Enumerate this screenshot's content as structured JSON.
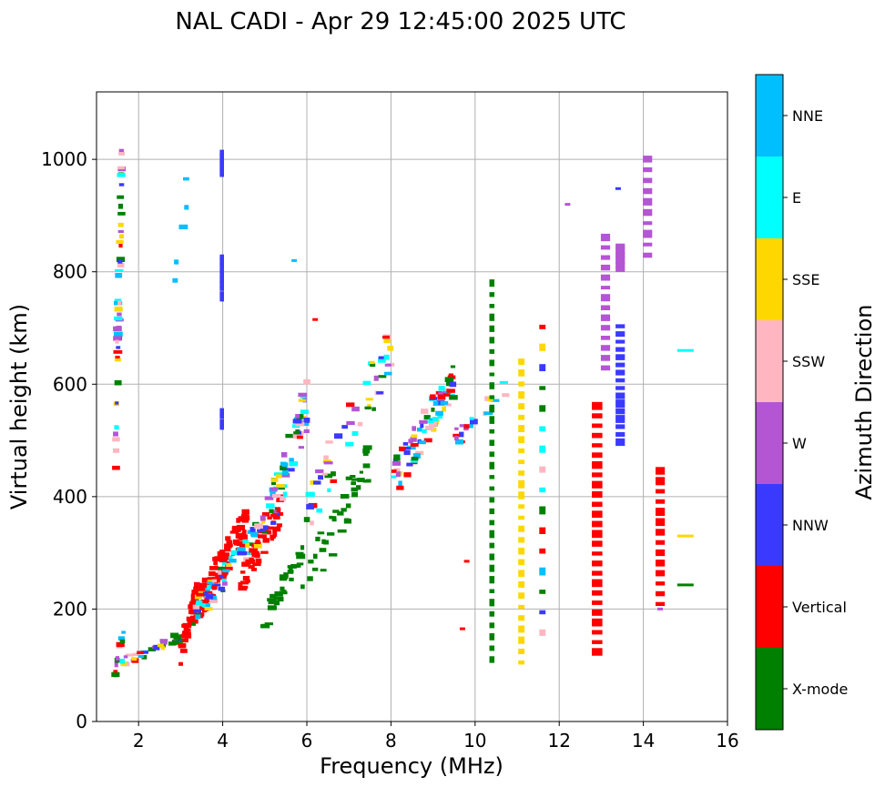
{
  "chart_data": {
    "type": "scatter",
    "title": "NAL CADI - Apr 29 12:45:00 2025 UTC",
    "xlabel": "Frequency (MHz)",
    "ylabel": "Virtual height (km)",
    "xlim": [
      1,
      16
    ],
    "ylim": [
      0,
      1120
    ],
    "xticks": [
      2,
      4,
      6,
      8,
      10,
      12,
      14,
      16
    ],
    "yticks": [
      0,
      200,
      400,
      600,
      800,
      1000
    ],
    "grid": true,
    "colorbar": {
      "label": "Azimuth Direction",
      "categories": [
        {
          "name": "X-mode",
          "color": "#008000"
        },
        {
          "name": "Vertical",
          "color": "#ff0000"
        },
        {
          "name": "NNW",
          "color": "#3a3aff"
        },
        {
          "name": "W",
          "color": "#b455d4"
        },
        {
          "name": "SSW",
          "color": "#ffb6c1"
        },
        {
          "name": "SSE",
          "color": "#ffd700"
        },
        {
          "name": "E",
          "color": "#00ffff"
        },
        {
          "name": "NNE",
          "color": "#00bfff"
        }
      ]
    },
    "traces": [
      {
        "x1": 1.45,
        "x2": 1.65,
        "y1": 90,
        "y2": 160,
        "dir": "mixed",
        "n": 12
      },
      {
        "x1": 1.6,
        "x2": 3.0,
        "y1": 105,
        "y2": 150,
        "dir": "mixed",
        "n": 30
      },
      {
        "x1": 3.0,
        "x2": 3.4,
        "y1": 120,
        "y2": 230,
        "dir": "Vertical",
        "n": 40
      },
      {
        "x1": 3.3,
        "x2": 4.6,
        "y1": 190,
        "y2": 360,
        "dir": "Vertical",
        "n": 90
      },
      {
        "x1": 3.3,
        "x2": 4.8,
        "y1": 190,
        "y2": 330,
        "dir": "mixed",
        "n": 60
      },
      {
        "x1": 4.4,
        "x2": 5.4,
        "y1": 240,
        "y2": 380,
        "dir": "Vertical",
        "n": 45
      },
      {
        "x1": 4.8,
        "x2": 6.0,
        "y1": 300,
        "y2": 560,
        "dir": "mixed",
        "n": 70
      },
      {
        "x1": 5.0,
        "x2": 5.9,
        "y1": 180,
        "y2": 300,
        "dir": "X-mode",
        "n": 30
      },
      {
        "x1": 5.9,
        "x2": 7.5,
        "y1": 230,
        "y2": 470,
        "dir": "X-mode",
        "n": 40
      },
      {
        "x1": 6.0,
        "x2": 8.0,
        "y1": 380,
        "y2": 660,
        "dir": "mixed",
        "n": 50
      },
      {
        "x1": 8.0,
        "x2": 9.5,
        "y1": 420,
        "y2": 610,
        "dir": "mixed",
        "n": 80
      },
      {
        "x1": 9.5,
        "x2": 10.8,
        "y1": 500,
        "y2": 600,
        "dir": "mixed",
        "n": 20
      },
      {
        "x1": 1.45,
        "x2": 1.6,
        "y1": 490,
        "y2": 960,
        "dir": "mixed",
        "n": 45
      },
      {
        "x1": 2.8,
        "x2": 3.2,
        "y1": 740,
        "y2": 990,
        "dir": "NNE",
        "n": 5
      }
    ],
    "columns": [
      {
        "x": 3.98,
        "w": 0.1,
        "y1": 970,
        "y2": 1015,
        "dir": "NNW",
        "n": 8
      },
      {
        "x": 3.98,
        "w": 0.1,
        "y1": 750,
        "y2": 830,
        "dir": "NNW",
        "n": 10
      },
      {
        "x": 3.98,
        "w": 0.1,
        "y1": 520,
        "y2": 555,
        "dir": "NNW",
        "n": 4
      },
      {
        "x": 10.4,
        "w": 0.12,
        "y1": 100,
        "y2": 790,
        "dir": "X-mode",
        "n": 34
      },
      {
        "x": 11.1,
        "w": 0.15,
        "y1": 95,
        "y2": 650,
        "dir": "SSE",
        "n": 28
      },
      {
        "x": 12.9,
        "w": 0.25,
        "y1": 115,
        "y2": 570,
        "dir": "Vertical",
        "n": 26
      },
      {
        "x": 13.1,
        "w": 0.22,
        "y1": 620,
        "y2": 870,
        "dir": "W",
        "n": 14
      },
      {
        "x": 13.45,
        "w": 0.22,
        "y1": 490,
        "y2": 710,
        "dir": "NNW",
        "n": 16
      },
      {
        "x": 13.45,
        "w": 0.22,
        "y1": 800,
        "y2": 850,
        "dir": "W",
        "n": 6
      },
      {
        "x": 14.1,
        "w": 0.22,
        "y1": 820,
        "y2": 1010,
        "dir": "W",
        "n": 10
      },
      {
        "x": 14.4,
        "w": 0.22,
        "y1": 200,
        "y2": 455,
        "dir": "Vertical",
        "n": 14
      },
      {
        "x": 11.6,
        "w": 0.15,
        "y1": 140,
        "y2": 720,
        "dir": "mixed",
        "n": 16
      }
    ],
    "isolated": [
      {
        "x": 15.0,
        "y": 660,
        "dir": "E"
      },
      {
        "x": 15.0,
        "y": 330,
        "dir": "SSE"
      },
      {
        "x": 15.0,
        "y": 243,
        "dir": "X-mode"
      },
      {
        "x": 14.4,
        "y": 200,
        "dir": "W"
      },
      {
        "x": 13.4,
        "y": 948,
        "dir": "NNW"
      },
      {
        "x": 12.2,
        "y": 920,
        "dir": "W"
      },
      {
        "x": 9.8,
        "y": 285,
        "dir": "Vertical"
      },
      {
        "x": 9.7,
        "y": 165,
        "dir": "Vertical"
      },
      {
        "x": 6.2,
        "y": 715,
        "dir": "Vertical"
      },
      {
        "x": 5.7,
        "y": 820,
        "dir": "NNE"
      }
    ]
  }
}
